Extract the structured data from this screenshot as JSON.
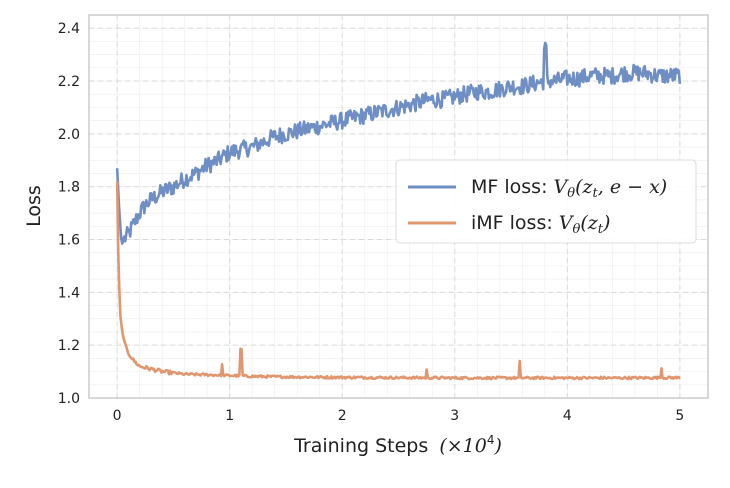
{
  "chart_data": {
    "type": "line",
    "xlabel": "Training Steps",
    "xlabel_math": "(×10",
    "xlabel_exp": "4",
    "xlabel_close": ")",
    "ylabel": "Loss",
    "xlim": [
      -0.25,
      5.25
    ],
    "ylim": [
      1.0,
      2.45
    ],
    "xticks": [
      0,
      1,
      2,
      3,
      4,
      5
    ],
    "yticks": [
      1.0,
      1.2,
      1.4,
      1.6,
      1.8,
      2.0,
      2.2,
      2.4
    ],
    "xtick_labels": [
      "0",
      "1",
      "2",
      "3",
      "4",
      "5"
    ],
    "ytick_labels": [
      "1.0",
      "1.2",
      "1.4",
      "1.6",
      "1.8",
      "2.0",
      "2.2",
      "2.4"
    ],
    "grid": true,
    "legend_position": "center-right",
    "series": [
      {
        "name": "MF loss",
        "legend_prefix": "MF loss: ",
        "legend_math": "V",
        "legend_sub": "θ",
        "legend_args": "(z",
        "legend_sub2": "t",
        "legend_rest": ", e − x)",
        "color": "#6f8fc4",
        "x": [
          0.0,
          0.02,
          0.04,
          0.06,
          0.1,
          0.15,
          0.2,
          0.25,
          0.3,
          0.4,
          0.5,
          0.6,
          0.7,
          0.8,
          0.9,
          1.0,
          1.1,
          1.2,
          1.3,
          1.4,
          1.5,
          1.6,
          1.7,
          1.8,
          1.9,
          2.0,
          2.1,
          2.2,
          2.3,
          2.4,
          2.5,
          2.6,
          2.7,
          2.8,
          2.9,
          3.0,
          3.1,
          3.2,
          3.3,
          3.4,
          3.5,
          3.6,
          3.7,
          3.8,
          3.9,
          4.0,
          4.1,
          4.2,
          4.3,
          4.4,
          4.5,
          4.6,
          4.7,
          4.8,
          4.9,
          5.0
        ],
        "values": [
          1.87,
          1.7,
          1.58,
          1.6,
          1.62,
          1.66,
          1.7,
          1.73,
          1.75,
          1.78,
          1.8,
          1.83,
          1.85,
          1.88,
          1.9,
          1.93,
          1.94,
          1.95,
          1.97,
          1.99,
          2.0,
          2.01,
          2.02,
          2.03,
          2.04,
          2.05,
          2.06,
          2.07,
          2.08,
          2.09,
          2.1,
          2.11,
          2.12,
          2.13,
          2.13,
          2.14,
          2.15,
          2.16,
          2.16,
          2.17,
          2.18,
          2.18,
          2.19,
          2.2,
          2.2,
          2.21,
          2.21,
          2.22,
          2.22,
          2.22,
          2.23,
          2.23,
          2.23,
          2.22,
          2.22,
          2.22
        ]
      },
      {
        "name": "iMF loss",
        "legend_prefix": "iMF loss: ",
        "legend_math": "V",
        "legend_sub": "θ",
        "legend_args": "(z",
        "legend_sub2": "t",
        "legend_rest": ")",
        "color": "#e0976f",
        "x": [
          0.0,
          0.01,
          0.02,
          0.03,
          0.05,
          0.07,
          0.1,
          0.15,
          0.2,
          0.3,
          0.4,
          0.5,
          0.6,
          0.8,
          1.0,
          1.1,
          1.2,
          1.5,
          2.0,
          2.5,
          3.0,
          3.5,
          4.0,
          4.5,
          5.0
        ],
        "values": [
          1.82,
          1.55,
          1.4,
          1.3,
          1.24,
          1.2,
          1.17,
          1.14,
          1.12,
          1.11,
          1.1,
          1.095,
          1.09,
          1.088,
          1.085,
          1.084,
          1.082,
          1.08,
          1.078,
          1.077,
          1.076,
          1.076,
          1.076,
          1.076,
          1.077
        ]
      }
    ]
  }
}
